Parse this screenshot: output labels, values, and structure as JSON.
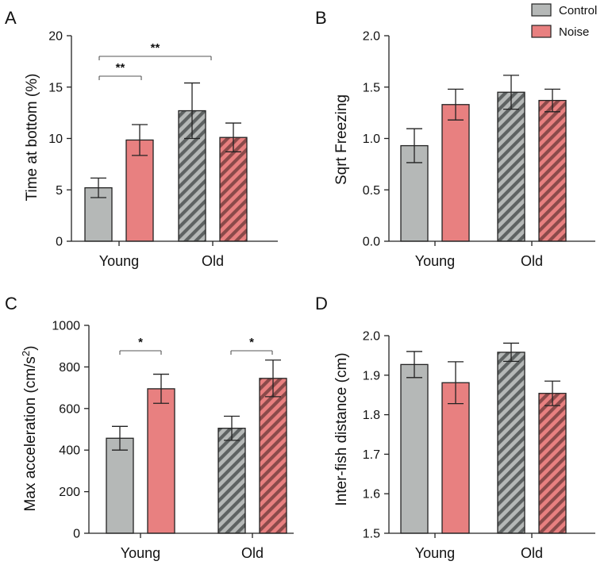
{
  "legend": {
    "entries": [
      {
        "name": "Control",
        "color": "#b5b8b7"
      },
      {
        "name": "Noise",
        "color": "#e88080"
      }
    ]
  },
  "colors": {
    "control": "#b5b8b7",
    "noise": "#e88080",
    "stroke": "#222222"
  },
  "chart_data": [
    {
      "panel": "A",
      "type": "bar",
      "ylabel": "Time at bottom (%)",
      "ylim": [
        0,
        20
      ],
      "yticks": [
        0,
        5,
        10,
        15,
        20
      ],
      "ytick_labels": [
        "0",
        "5",
        "10",
        "15",
        "20"
      ],
      "categories": [
        "Young",
        "Old"
      ],
      "series": [
        {
          "name": "Control",
          "values": [
            5.2,
            12.7
          ],
          "errors": [
            0.95,
            2.7
          ]
        },
        {
          "name": "Noise",
          "values": [
            9.85,
            10.1
          ],
          "errors": [
            1.5,
            1.4
          ]
        }
      ],
      "significance": [
        {
          "label": "**",
          "from": "Young Control",
          "to": "Young Noise"
        },
        {
          "label": "**",
          "from": "Young Control",
          "to": "Old Control"
        }
      ]
    },
    {
      "panel": "B",
      "type": "bar",
      "ylabel": "Sqrt Freezing",
      "ylim": [
        0,
        2.0
      ],
      "yticks": [
        0,
        0.5,
        1.0,
        1.5,
        2.0
      ],
      "ytick_labels": [
        "0.0",
        "0.5",
        "1.0",
        "1.5",
        "2.0"
      ],
      "categories": [
        "Young",
        "Old"
      ],
      "series": [
        {
          "name": "Control",
          "values": [
            0.93,
            1.45
          ],
          "errors": [
            0.165,
            0.165
          ]
        },
        {
          "name": "Noise",
          "values": [
            1.33,
            1.37
          ],
          "errors": [
            0.15,
            0.11
          ]
        }
      ],
      "significance": []
    },
    {
      "panel": "C",
      "type": "bar",
      "ylabel_main": "Max acceleration (cm/s",
      "ylabel_sup": "2",
      "ylabel_end": ")",
      "ylim": [
        0,
        1000
      ],
      "yticks": [
        0,
        200,
        400,
        600,
        800,
        1000
      ],
      "ytick_labels": [
        "0",
        "200",
        "400",
        "600",
        "800",
        "1000"
      ],
      "categories": [
        "Young",
        "Old"
      ],
      "series": [
        {
          "name": "Control",
          "values": [
            457,
            505
          ],
          "errors": [
            57,
            58
          ]
        },
        {
          "name": "Noise",
          "values": [
            695,
            745
          ],
          "errors": [
            70,
            88
          ]
        }
      ],
      "significance": [
        {
          "label": "*",
          "from": "Young Control",
          "to": "Young Noise"
        },
        {
          "label": "*",
          "from": "Old Control",
          "to": "Old Noise"
        }
      ]
    },
    {
      "panel": "D",
      "type": "bar",
      "ylabel": "Inter-fish distance (cm)",
      "ylim": [
        1.5,
        2.0
      ],
      "yticks": [
        1.5,
        1.6,
        1.7,
        1.8,
        1.9,
        2.0
      ],
      "ytick_labels": [
        "1.5",
        "1.6",
        "1.7",
        "1.8",
        "1.9",
        "2.0"
      ],
      "categories": [
        "Young",
        "Old"
      ],
      "series": [
        {
          "name": "Control",
          "values": [
            1.927,
            1.958
          ],
          "errors": [
            0.033,
            0.023
          ]
        },
        {
          "name": "Noise",
          "values": [
            1.881,
            1.854
          ],
          "errors": [
            0.053,
            0.031
          ]
        }
      ],
      "significance": []
    }
  ]
}
